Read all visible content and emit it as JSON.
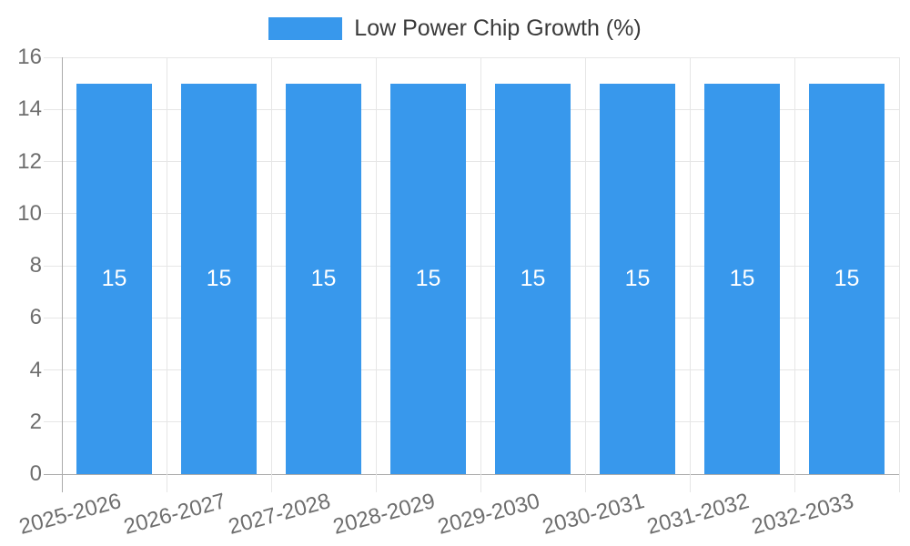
{
  "legend": {
    "label": "Low Power Chip Growth (%)",
    "position": "top"
  },
  "colors": {
    "background": "#ffffff",
    "bar": "#3898ec",
    "bar_label": "#ffffff",
    "grid": "#e6e6e6",
    "zero": "#ababab",
    "tick_label": "#6e6e6e",
    "legend_text": "#3a3a3a"
  },
  "chart_data": {
    "type": "bar",
    "title": "",
    "xlabel": "",
    "ylabel": "",
    "categories": [
      "2025-2026",
      "2026-2027",
      "2027-2028",
      "2028-2029",
      "2029-2030",
      "2030-2031",
      "2031-2032",
      "2032-2033"
    ],
    "series": [
      {
        "name": "Low Power Chip Growth (%)",
        "color": "#3898ec",
        "values": [
          15,
          15,
          15,
          15,
          15,
          15,
          15,
          15
        ]
      }
    ],
    "value_labels_shown": true,
    "ylim": [
      0,
      16
    ],
    "yticks": [
      0,
      2,
      4,
      6,
      8,
      10,
      12,
      14,
      16
    ],
    "grid": true,
    "legend_position": "top",
    "x_label_rotation_deg": -15
  }
}
